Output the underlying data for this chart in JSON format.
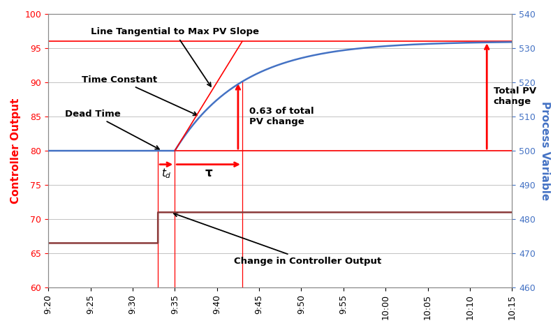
{
  "ylabel_left": "Controller Output",
  "ylabel_right": "Process Variable",
  "ylim_left": [
    60,
    100
  ],
  "ylim_right": [
    460,
    540
  ],
  "xtick_labels": [
    "9:20",
    "9:25",
    "9:30",
    "9:35",
    "9:40",
    "9:45",
    "9:50",
    "9:55",
    "10:00",
    "10:05",
    "10:10",
    "10:15"
  ],
  "yticks_left": [
    60,
    65,
    70,
    75,
    80,
    85,
    90,
    95,
    100
  ],
  "yticks_right": [
    460,
    470,
    480,
    490,
    500,
    510,
    520,
    530,
    540
  ],
  "co_before": 66.5,
  "co_after": 71.0,
  "co_step_t": 13.0,
  "pv_initial": 500.0,
  "pv_final": 532.0,
  "dead_time_duration": 2.0,
  "tau": 8.0,
  "colors": {
    "co": "#8B3A3A",
    "pv": "#4472C4",
    "red": "#FF0000",
    "grid": "#AAAAAA",
    "left_axis": "#FF0000",
    "right_axis": "#4472C4",
    "background": "#FFFFFF"
  },
  "annotations": {
    "tangent_label": "Line Tangential to Max PV Slope",
    "time_const_label": "Time Constant",
    "dead_time_label": "Dead Time",
    "pv_change_label": "0.63 of total\nPV change",
    "total_pv_label": "Total PV\nchange",
    "co_change_label": "Change in Controller Output",
    "td_label": "t_d",
    "tau_label": "τ"
  }
}
